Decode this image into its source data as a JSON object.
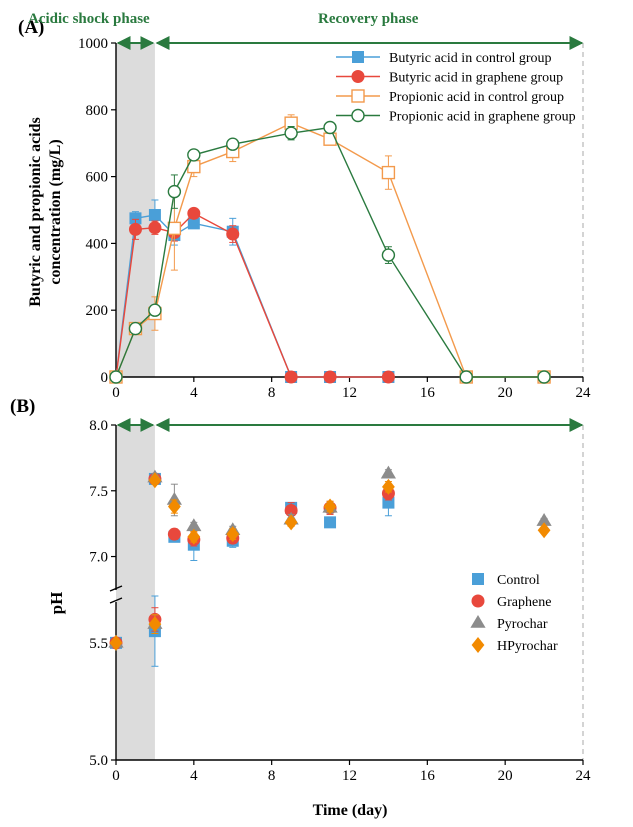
{
  "phase_labels": {
    "acidic": "Acidic shock phase",
    "recovery": "Recovery phase"
  },
  "colors": {
    "butyric_control": "#4a9fd8",
    "butyric_graphene": "#e8483c",
    "propionic_control": "#f39a4c",
    "propionic_graphene": "#2a7a3f",
    "pyrochar": "#8c8c8c",
    "hpyrochar": "#f28a00",
    "shade": "#dcdcdc",
    "phase_arrow": "#2a7a3f"
  },
  "chart_data": [
    {
      "type": "line",
      "panel_label": "(A)",
      "ylabel": "Butyric and propionic acids concentration (mg/L)",
      "xlabel": "",
      "xlim": [
        0,
        24
      ],
      "ylim": [
        0,
        1000
      ],
      "x_ticks": [
        0,
        4,
        8,
        12,
        16,
        20,
        24
      ],
      "y_ticks": [
        0,
        200,
        400,
        600,
        800,
        1000
      ],
      "shaded_x_range": [
        0,
        2
      ],
      "legend_position": "top-right",
      "series": [
        {
          "name": "Butyric acid in control group",
          "marker": "square-filled",
          "color_key": "butyric_control",
          "x": [
            0,
            1,
            2,
            3,
            4,
            6,
            9,
            11,
            14
          ],
          "y": [
            0,
            475,
            485,
            425,
            460,
            435,
            0,
            0,
            0
          ],
          "err": [
            0,
            20,
            45,
            30,
            15,
            40,
            0,
            0,
            0
          ]
        },
        {
          "name": "Butyric acid in graphene group",
          "marker": "circle-filled",
          "color_key": "butyric_graphene",
          "x": [
            0,
            1,
            2,
            3,
            4,
            6,
            9,
            11,
            14
          ],
          "y": [
            0,
            442,
            447,
            432,
            490,
            428,
            0,
            0,
            0
          ],
          "err": [
            0,
            30,
            20,
            25,
            15,
            25,
            0,
            0,
            0
          ]
        },
        {
          "name": "Propionic acid in control group",
          "marker": "square-open",
          "color_key": "propionic_control",
          "x": [
            0,
            1,
            2,
            3,
            4,
            6,
            9,
            11,
            14,
            18,
            22
          ],
          "y": [
            0,
            145,
            190,
            445,
            630,
            675,
            760,
            712,
            612,
            0,
            0
          ],
          "err": [
            0,
            15,
            50,
            125,
            30,
            30,
            25,
            15,
            50,
            0,
            0
          ]
        },
        {
          "name": "Propionic acid in graphene group",
          "marker": "circle-open",
          "color_key": "propionic_graphene",
          "x": [
            0,
            1,
            2,
            3,
            4,
            6,
            9,
            11,
            14,
            18,
            22
          ],
          "y": [
            0,
            145,
            200,
            555,
            665,
            697,
            730,
            747,
            365,
            0,
            0
          ],
          "err": [
            0,
            10,
            15,
            50,
            15,
            15,
            20,
            10,
            25,
            0,
            0
          ]
        }
      ]
    },
    {
      "type": "scatter",
      "panel_label": "(B)",
      "ylabel": "pH",
      "xlabel": "Time (day)",
      "xlim": [
        0,
        24
      ],
      "y_ranges": [
        [
          5.0,
          5.7
        ],
        [
          6.7,
          8.0
        ]
      ],
      "y_ticks": [
        5.0,
        5.5,
        7.0,
        7.5,
        8.0
      ],
      "x_ticks": [
        0,
        4,
        8,
        12,
        16,
        20,
        24
      ],
      "shaded_x_range": [
        0,
        2
      ],
      "legend_position": "right",
      "series": [
        {
          "name": "Control",
          "marker": "square",
          "color_key": "butyric_control",
          "x": [
            0,
            2,
            2,
            3,
            4,
            6,
            9,
            11,
            14
          ],
          "y": [
            5.5,
            5.55,
            7.59,
            7.15,
            7.09,
            7.12,
            7.37,
            7.26,
            7.41
          ],
          "err": [
            0,
            0.15,
            0.04,
            0.03,
            0.12,
            0.05,
            0.04,
            0.02,
            0.1
          ]
        },
        {
          "name": "Graphene",
          "marker": "circle",
          "color_key": "butyric_graphene",
          "x": [
            0,
            2,
            2,
            3,
            4,
            6,
            9,
            11,
            14
          ],
          "y": [
            5.5,
            5.6,
            7.59,
            7.17,
            7.13,
            7.14,
            7.35,
            7.37,
            7.48
          ],
          "err": [
            0,
            0.05,
            0.03,
            0.04,
            0.05,
            0.04,
            0.06,
            0.05,
            0.05
          ]
        },
        {
          "name": "Pyrochar",
          "marker": "triangle",
          "color_key": "pyrochar",
          "x": [
            0,
            2,
            2,
            3,
            4,
            6,
            9,
            11,
            14,
            22
          ],
          "y": [
            5.5,
            5.58,
            7.6,
            7.43,
            7.23,
            7.2,
            7.28,
            7.37,
            7.63,
            7.27
          ],
          "err": [
            0,
            0.04,
            0.03,
            0.12,
            0.03,
            0.03,
            0.04,
            0.04,
            0.03,
            0.02
          ]
        },
        {
          "name": "HPyrochar",
          "marker": "diamond",
          "color_key": "hpyrochar",
          "x": [
            0,
            2,
            2,
            3,
            4,
            6,
            9,
            11,
            14,
            22
          ],
          "y": [
            5.5,
            5.58,
            7.58,
            7.38,
            7.15,
            7.17,
            7.26,
            7.38,
            7.53,
            7.2
          ],
          "err": [
            0,
            0.04,
            0.03,
            0.05,
            0.04,
            0.04,
            0.03,
            0.04,
            0.04,
            0.02
          ]
        }
      ]
    }
  ]
}
